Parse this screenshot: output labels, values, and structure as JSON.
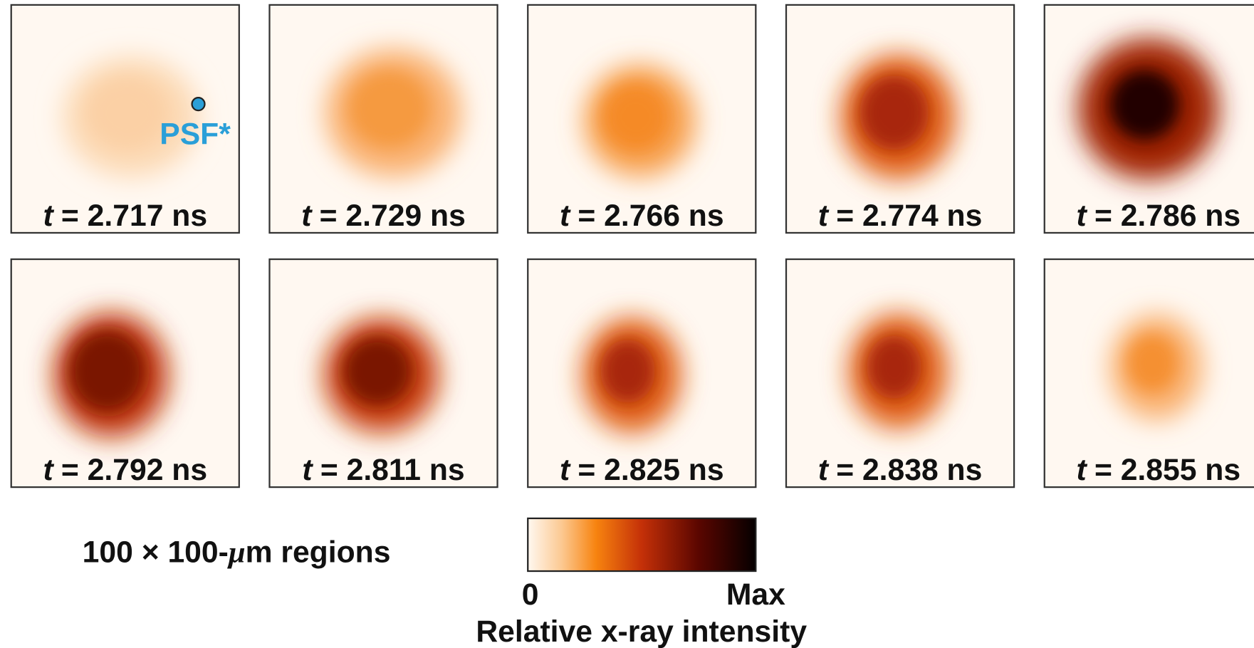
{
  "panels": [
    {
      "var": "t",
      "time": "= 2.717 ns"
    },
    {
      "var": "t",
      "time": "= 2.729 ns"
    },
    {
      "var": "t",
      "time": "= 2.766 ns"
    },
    {
      "var": "t",
      "time": "= 2.774 ns"
    },
    {
      "var": "t",
      "time": "= 2.786 ns"
    },
    {
      "var": "t",
      "time": "= 2.792 ns"
    },
    {
      "var": "t",
      "time": "= 2.811 ns"
    },
    {
      "var": "t",
      "time": "= 2.825 ns"
    },
    {
      "var": "t",
      "time": "= 2.838 ns"
    },
    {
      "var": "t",
      "time": "= 2.855 ns"
    }
  ],
  "psf_label": "PSF*",
  "scale_label": {
    "before": "100 × 100-",
    "mu": "μ",
    "after": "m regions"
  },
  "colorbar": {
    "min_label": "0",
    "max_label": "Max",
    "title": "Relative x-ray intensity"
  }
}
